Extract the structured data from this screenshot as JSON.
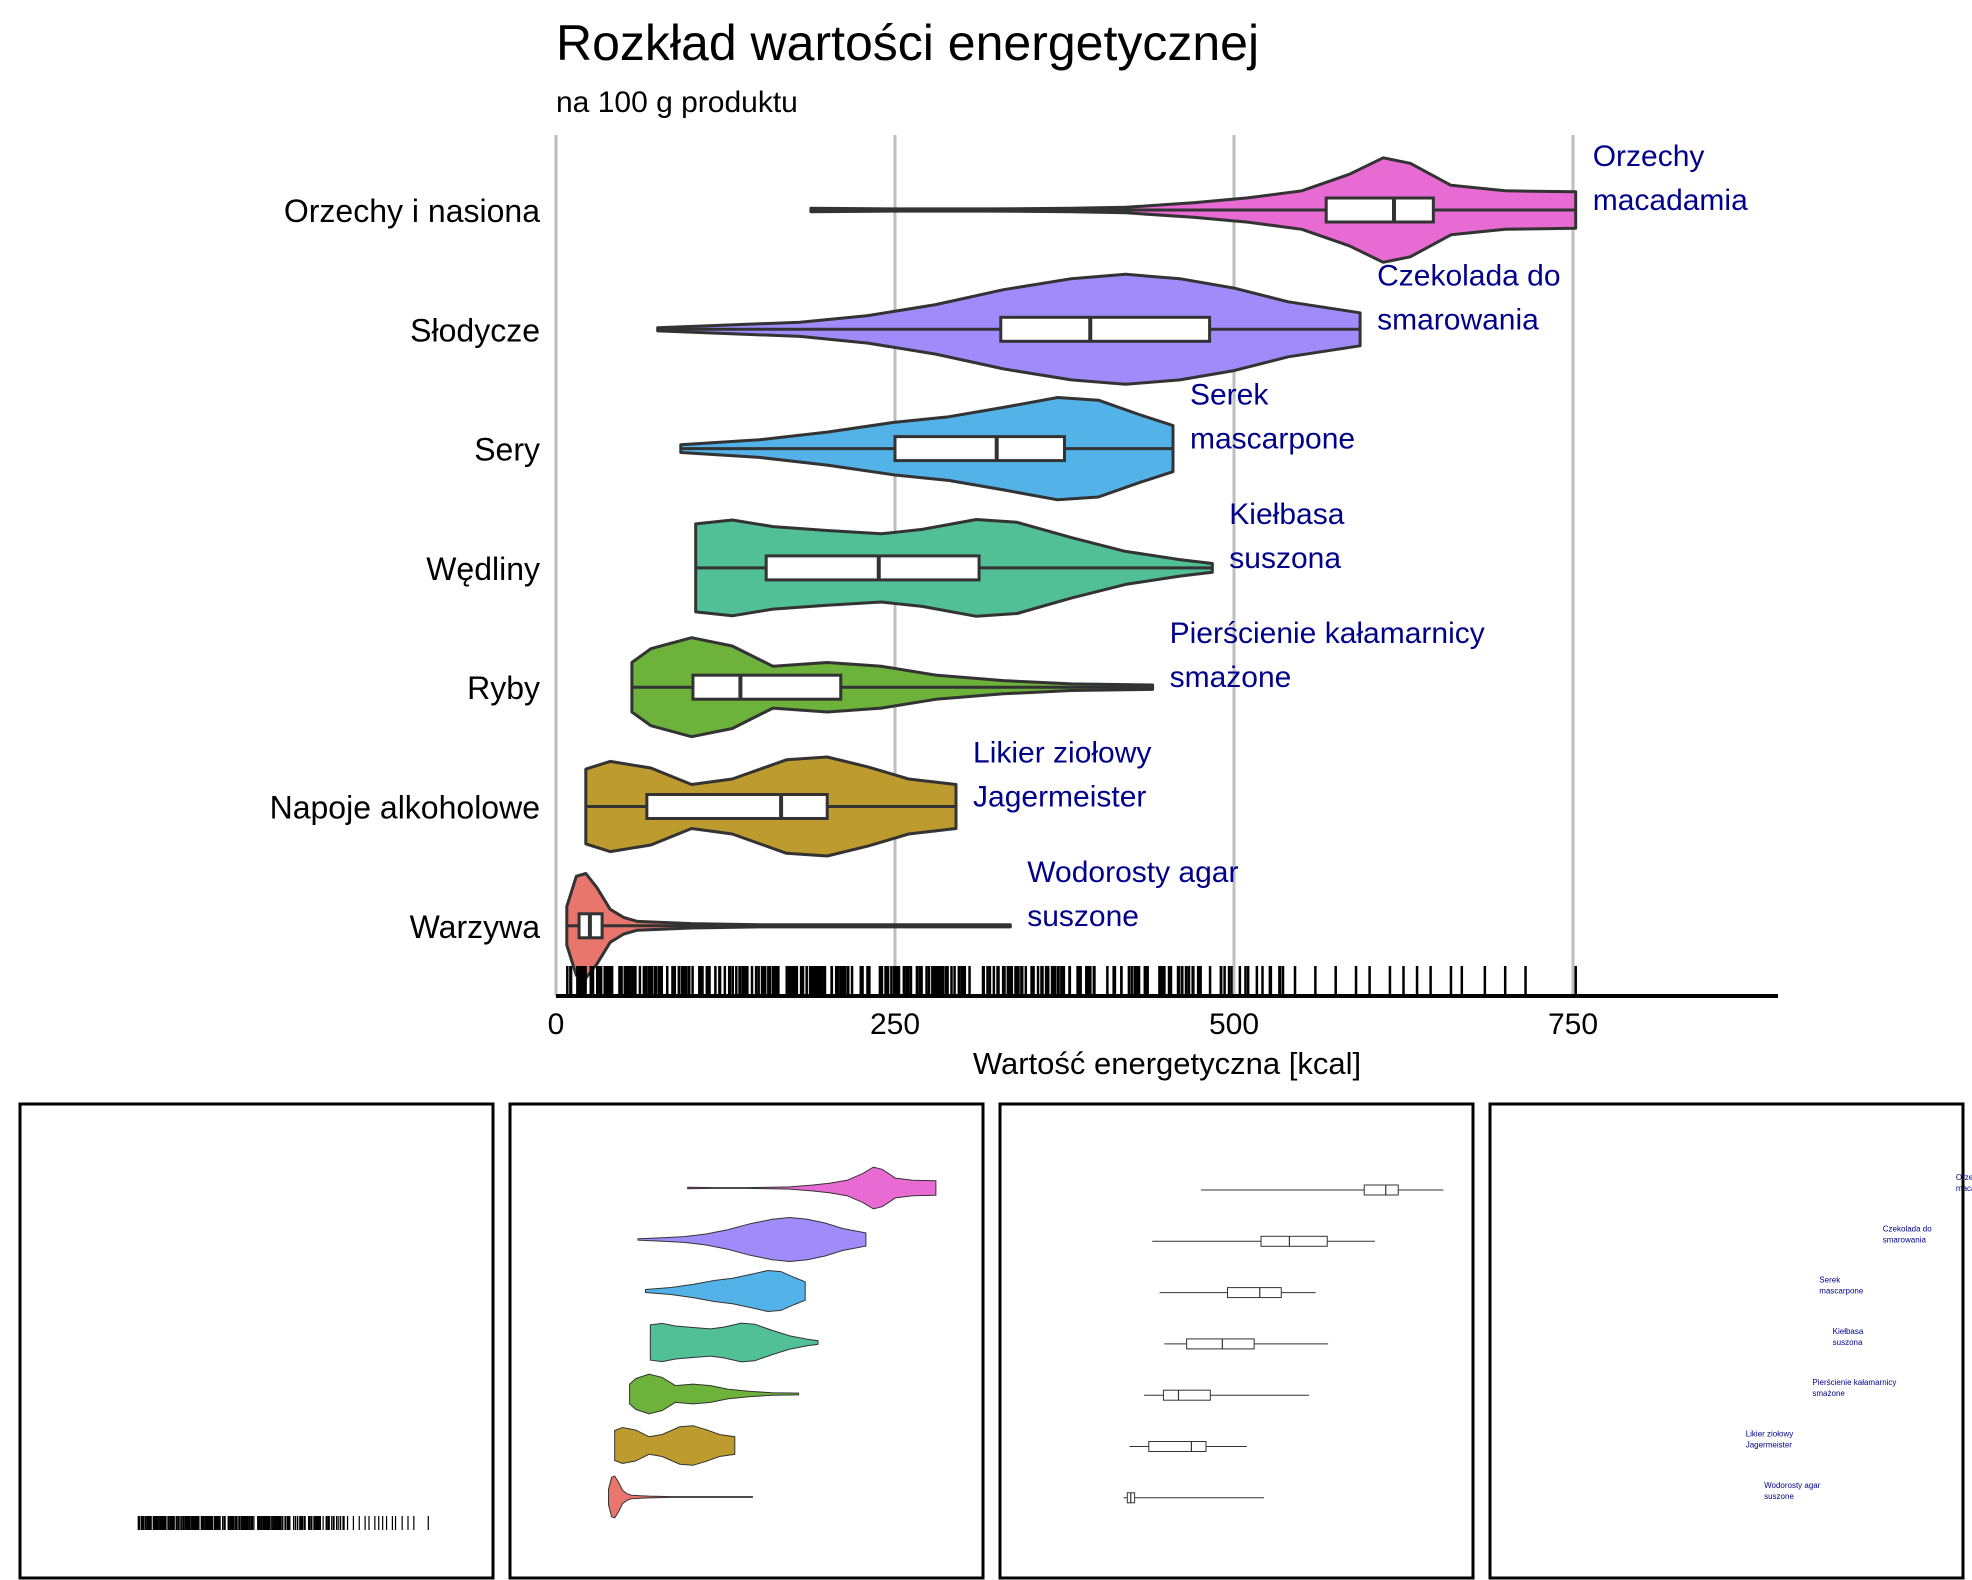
{
  "chart_data": [
    {
      "type": "violin",
      "title": "Rozkład wartości energetycznej",
      "subtitle": "na 100 g produktu",
      "xlabel": "Wartość energetyczna [kcal]",
      "ylabel": "",
      "xlim": [
        0,
        900
      ],
      "xticks": [
        0,
        250,
        500,
        750
      ],
      "grid": "vertical",
      "rug": true,
      "categories": [
        "Orzechy i nasiona",
        "Słodycze",
        "Sery",
        "Wędliny",
        "Ryby",
        "Napoje alkoholowe",
        "Warzywa"
      ],
      "series": [
        {
          "category": "Orzechy i nasiona",
          "color": "#e76bd3",
          "min": 188,
          "q1": 568,
          "median": 618,
          "q3": 647,
          "max": 752,
          "density": [
            [
              188,
              0.03
            ],
            [
              250,
              0.02
            ],
            [
              320,
              0.02
            ],
            [
              380,
              0.03
            ],
            [
              420,
              0.05
            ],
            [
              470,
              0.13
            ],
            [
              510,
              0.22
            ],
            [
              550,
              0.35
            ],
            [
              585,
              0.65
            ],
            [
              610,
              0.95
            ],
            [
              630,
              0.85
            ],
            [
              660,
              0.45
            ],
            [
              700,
              0.35
            ],
            [
              752,
              0.33
            ]
          ],
          "annotation": [
            "Orzechy",
            "macadamia"
          ]
        },
        {
          "category": "Słodycze",
          "color": "#9f8cfa",
          "min": 75,
          "q1": 328,
          "median": 394,
          "q3": 482,
          "max": 593,
          "density": [
            [
              75,
              0.03
            ],
            [
              120,
              0.07
            ],
            [
              180,
              0.13
            ],
            [
              230,
              0.25
            ],
            [
              280,
              0.45
            ],
            [
              330,
              0.72
            ],
            [
              380,
              0.92
            ],
            [
              420,
              1.0
            ],
            [
              460,
              0.92
            ],
            [
              500,
              0.75
            ],
            [
              540,
              0.5
            ],
            [
              593,
              0.3
            ]
          ],
          "annotation": [
            "Czekolada do",
            "smarowania"
          ]
        },
        {
          "category": "Sery",
          "color": "#53b3e8",
          "min": 92,
          "q1": 250,
          "median": 325,
          "q3": 375,
          "max": 455,
          "density": [
            [
              92,
              0.07
            ],
            [
              150,
              0.16
            ],
            [
              200,
              0.3
            ],
            [
              250,
              0.48
            ],
            [
              290,
              0.58
            ],
            [
              330,
              0.75
            ],
            [
              370,
              0.93
            ],
            [
              400,
              0.88
            ],
            [
              430,
              0.62
            ],
            [
              455,
              0.42
            ]
          ],
          "annotation": [
            "Serek",
            "mascarpone"
          ]
        },
        {
          "category": "Wędliny",
          "color": "#52c096",
          "min": 103,
          "q1": 155,
          "median": 238,
          "q3": 312,
          "max": 484,
          "density": [
            [
              103,
              0.8
            ],
            [
              130,
              0.87
            ],
            [
              160,
              0.75
            ],
            [
              200,
              0.68
            ],
            [
              240,
              0.62
            ],
            [
              270,
              0.7
            ],
            [
              310,
              0.88
            ],
            [
              340,
              0.83
            ],
            [
              380,
              0.55
            ],
            [
              420,
              0.3
            ],
            [
              460,
              0.15
            ],
            [
              484,
              0.08
            ]
          ],
          "annotation": [
            "Kiełbasa",
            "suszona"
          ]
        },
        {
          "category": "Ryby",
          "color": "#6db23a",
          "min": 56,
          "q1": 101,
          "median": 136,
          "q3": 210,
          "max": 440,
          "density": [
            [
              56,
              0.45
            ],
            [
              70,
              0.7
            ],
            [
              100,
              0.9
            ],
            [
              130,
              0.75
            ],
            [
              160,
              0.38
            ],
            [
              200,
              0.45
            ],
            [
              240,
              0.38
            ],
            [
              280,
              0.22
            ],
            [
              330,
              0.12
            ],
            [
              380,
              0.06
            ],
            [
              440,
              0.04
            ]
          ],
          "annotation": [
            "Pierścienie kałamarnicy",
            "smażone"
          ]
        },
        {
          "category": "Napoje alkoholowe",
          "color": "#bd9b2e",
          "min": 22,
          "q1": 67,
          "median": 166,
          "q3": 200,
          "max": 295,
          "density": [
            [
              22,
              0.68
            ],
            [
              40,
              0.82
            ],
            [
              70,
              0.7
            ],
            [
              100,
              0.4
            ],
            [
              130,
              0.5
            ],
            [
              170,
              0.85
            ],
            [
              200,
              0.9
            ],
            [
              230,
              0.72
            ],
            [
              260,
              0.5
            ],
            [
              295,
              0.4
            ]
          ],
          "annotation": [
            "Likier ziołowy",
            "Jagermeister"
          ]
        },
        {
          "category": "Warzywa",
          "color": "#e8766c",
          "min": 8,
          "q1": 17,
          "median": 25,
          "q3": 34,
          "max": 335,
          "density": [
            [
              8,
              0.35
            ],
            [
              15,
              0.9
            ],
            [
              22,
              0.95
            ],
            [
              30,
              0.7
            ],
            [
              40,
              0.3
            ],
            [
              50,
              0.15
            ],
            [
              60,
              0.08
            ],
            [
              80,
              0.06
            ],
            [
              100,
              0.04
            ],
            [
              150,
              0.02
            ],
            [
              220,
              0.02
            ],
            [
              335,
              0.02
            ]
          ],
          "annotation": [
            "Wodorosty agar",
            "suszone"
          ]
        }
      ]
    }
  ],
  "panels": [
    {
      "name": "rug"
    },
    {
      "name": "violin"
    },
    {
      "name": "boxplot"
    },
    {
      "name": "labels"
    }
  ]
}
